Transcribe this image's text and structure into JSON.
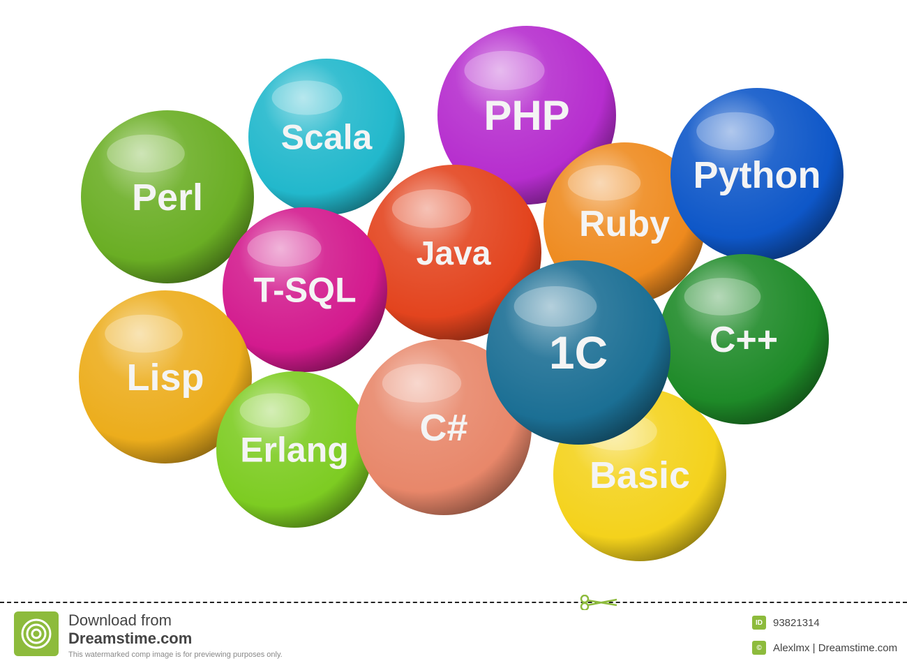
{
  "spheres": [
    {
      "label": "Scala",
      "color": "#22b8cc"
    },
    {
      "label": "PHP",
      "color": "#b62dce"
    },
    {
      "label": "Perl",
      "color": "#6aae24"
    },
    {
      "label": "Ruby",
      "color": "#ee8a1e"
    },
    {
      "label": "Python",
      "color": "#0e57c8"
    },
    {
      "label": "Java",
      "color": "#e3441e"
    },
    {
      "label": "T-SQL",
      "color": "#d31a8e"
    },
    {
      "label": "Lisp",
      "color": "#ecad1c"
    },
    {
      "label": "Erlang",
      "color": "#7dcc22"
    },
    {
      "label": "C#",
      "color": "#e8876a"
    },
    {
      "label": "Basic",
      "color": "#f4d21c"
    },
    {
      "label": "C++",
      "color": "#1e8a28"
    },
    {
      "label": "1C",
      "color": "#1b6f94"
    }
  ],
  "watermark": {
    "download_text": "Download from",
    "brand_text": "Dreamstime.com",
    "notice_text": "This watermarked comp image is for previewing purposes only.",
    "id_badge": "ID",
    "id_value": "93821314",
    "author_text": "Alexlmx | Dreamstime.com",
    "logo_color": "#8dbb3c"
  }
}
